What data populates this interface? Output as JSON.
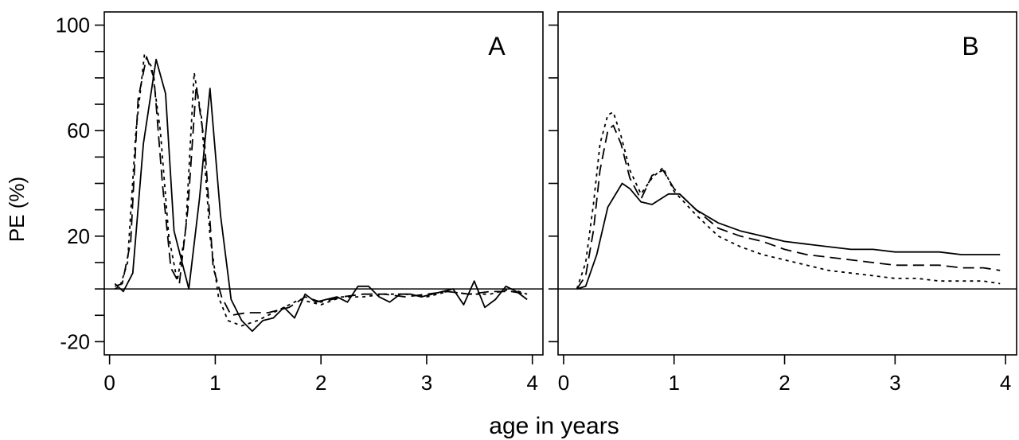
{
  "figure": {
    "xlabel": "age in years",
    "ylabel": "PE (%)"
  },
  "chart_data": [
    {
      "type": "line",
      "panel_label": "A",
      "xlim": [
        -0.05,
        4.1
      ],
      "ylim": [
        -25,
        105
      ],
      "x_ticks": [
        0,
        1,
        2,
        3,
        4
      ],
      "y_ticks": [
        -20,
        -10,
        0,
        10,
        20,
        30,
        40,
        50,
        60,
        70,
        80,
        90,
        100
      ],
      "y_tick_labels": [
        {
          "value": -20,
          "label": "-20"
        },
        {
          "value": 20,
          "label": "20"
        },
        {
          "value": 60,
          "label": "60"
        },
        {
          "value": 100,
          "label": "100"
        }
      ],
      "reference_line": 0,
      "grid": false,
      "series": [
        {
          "style": "solid",
          "x": [
            0.05,
            0.13,
            0.22,
            0.32,
            0.44,
            0.53,
            0.61,
            0.75,
            0.85,
            0.95,
            1.05,
            1.15,
            1.25,
            1.35,
            1.45,
            1.55,
            1.65,
            1.75,
            1.85,
            1.95,
            2.05,
            2.15,
            2.25,
            2.35,
            2.45,
            2.55,
            2.65,
            2.75,
            2.85,
            2.95,
            3.05,
            3.15,
            3.25,
            3.35,
            3.45,
            3.55,
            3.65,
            3.75,
            3.85,
            3.95
          ],
          "y": [
            2,
            -1,
            6,
            55,
            87,
            74,
            22,
            0,
            34,
            76,
            28,
            -4,
            -12,
            -16,
            -12,
            -11,
            -7,
            -11,
            -2,
            -5,
            -4,
            -3,
            -5,
            1,
            1,
            -3,
            -5,
            -2,
            -2,
            -3,
            -2,
            -1,
            0,
            -6,
            3,
            -7,
            -4,
            1,
            -1,
            -4
          ]
        },
        {
          "style": "dashed",
          "x": [
            0.05,
            0.12,
            0.2,
            0.27,
            0.35,
            0.42,
            0.5,
            0.58,
            0.66,
            0.74,
            0.82,
            0.9,
            0.98,
            1.06,
            1.15,
            1.3,
            1.5,
            1.7,
            1.85,
            2.0,
            2.2,
            2.4,
            2.6,
            2.8,
            3.0,
            3.2,
            3.4,
            3.6,
            3.8,
            3.95
          ],
          "y": [
            1,
            2,
            18,
            72,
            88,
            80,
            40,
            8,
            2,
            30,
            77,
            55,
            8,
            -3,
            -10,
            -9,
            -9,
            -7,
            -3,
            -5,
            -3,
            -2,
            -2,
            -3,
            -2,
            -1,
            -2,
            -1,
            -1,
            -2
          ]
        },
        {
          "style": "dotted",
          "x": [
            0.05,
            0.1,
            0.17,
            0.25,
            0.33,
            0.4,
            0.48,
            0.56,
            0.64,
            0.72,
            0.8,
            0.87,
            0.95,
            1.03,
            1.12,
            1.25,
            1.4,
            1.6,
            1.8,
            2.0,
            2.2,
            2.4,
            2.6,
            2.8,
            3.0,
            3.2,
            3.4,
            3.6,
            3.8,
            3.95
          ],
          "y": [
            0,
            1,
            10,
            60,
            89,
            84,
            60,
            20,
            3,
            22,
            82,
            65,
            20,
            -3,
            -12,
            -14,
            -12,
            -8,
            -4,
            -6,
            -3,
            -3,
            -2,
            -2,
            -3,
            -1,
            -2,
            -2,
            0,
            -2
          ]
        }
      ]
    },
    {
      "type": "line",
      "panel_label": "B",
      "xlim": [
        -0.05,
        4.1
      ],
      "ylim": [
        -25,
        105
      ],
      "x_ticks": [
        0,
        1,
        2,
        3,
        4
      ],
      "y_ticks": [
        -20,
        0,
        20,
        40,
        60,
        80,
        100
      ],
      "reference_line": 0,
      "grid": false,
      "series": [
        {
          "style": "solid",
          "x": [
            0.12,
            0.2,
            0.3,
            0.4,
            0.53,
            0.6,
            0.7,
            0.8,
            0.95,
            1.05,
            1.2,
            1.4,
            1.6,
            1.8,
            2.0,
            2.2,
            2.4,
            2.6,
            2.8,
            3.0,
            3.2,
            3.4,
            3.6,
            3.8,
            3.95
          ],
          "y": [
            0,
            1,
            13,
            31,
            40,
            38,
            33,
            32,
            36,
            36,
            30,
            25,
            22,
            20,
            18,
            17,
            16,
            15,
            15,
            14,
            14,
            14,
            13,
            13,
            13
          ]
        },
        {
          "style": "dashed",
          "x": [
            0.12,
            0.2,
            0.27,
            0.33,
            0.4,
            0.45,
            0.52,
            0.6,
            0.7,
            0.8,
            0.9,
            1.0,
            1.2,
            1.4,
            1.6,
            1.8,
            2.0,
            2.2,
            2.4,
            2.6,
            2.8,
            3.0,
            3.2,
            3.4,
            3.6,
            3.8,
            3.95
          ],
          "y": [
            0,
            5,
            22,
            45,
            60,
            62,
            55,
            42,
            34,
            43,
            45,
            38,
            30,
            23,
            20,
            18,
            15,
            13,
            12,
            11,
            10,
            9,
            9,
            9,
            8,
            8,
            7
          ]
        },
        {
          "style": "dotted",
          "x": [
            0.12,
            0.2,
            0.27,
            0.33,
            0.4,
            0.45,
            0.52,
            0.6,
            0.7,
            0.8,
            0.9,
            1.0,
            1.2,
            1.4,
            1.6,
            1.8,
            2.0,
            2.2,
            2.4,
            2.6,
            2.8,
            3.0,
            3.2,
            3.4,
            3.6,
            3.8,
            3.95
          ],
          "y": [
            0,
            10,
            32,
            55,
            66,
            67,
            58,
            45,
            36,
            42,
            46,
            37,
            28,
            20,
            16,
            13,
            11,
            9,
            7,
            6,
            5,
            4,
            4,
            3,
            3,
            3,
            2
          ]
        }
      ]
    }
  ]
}
